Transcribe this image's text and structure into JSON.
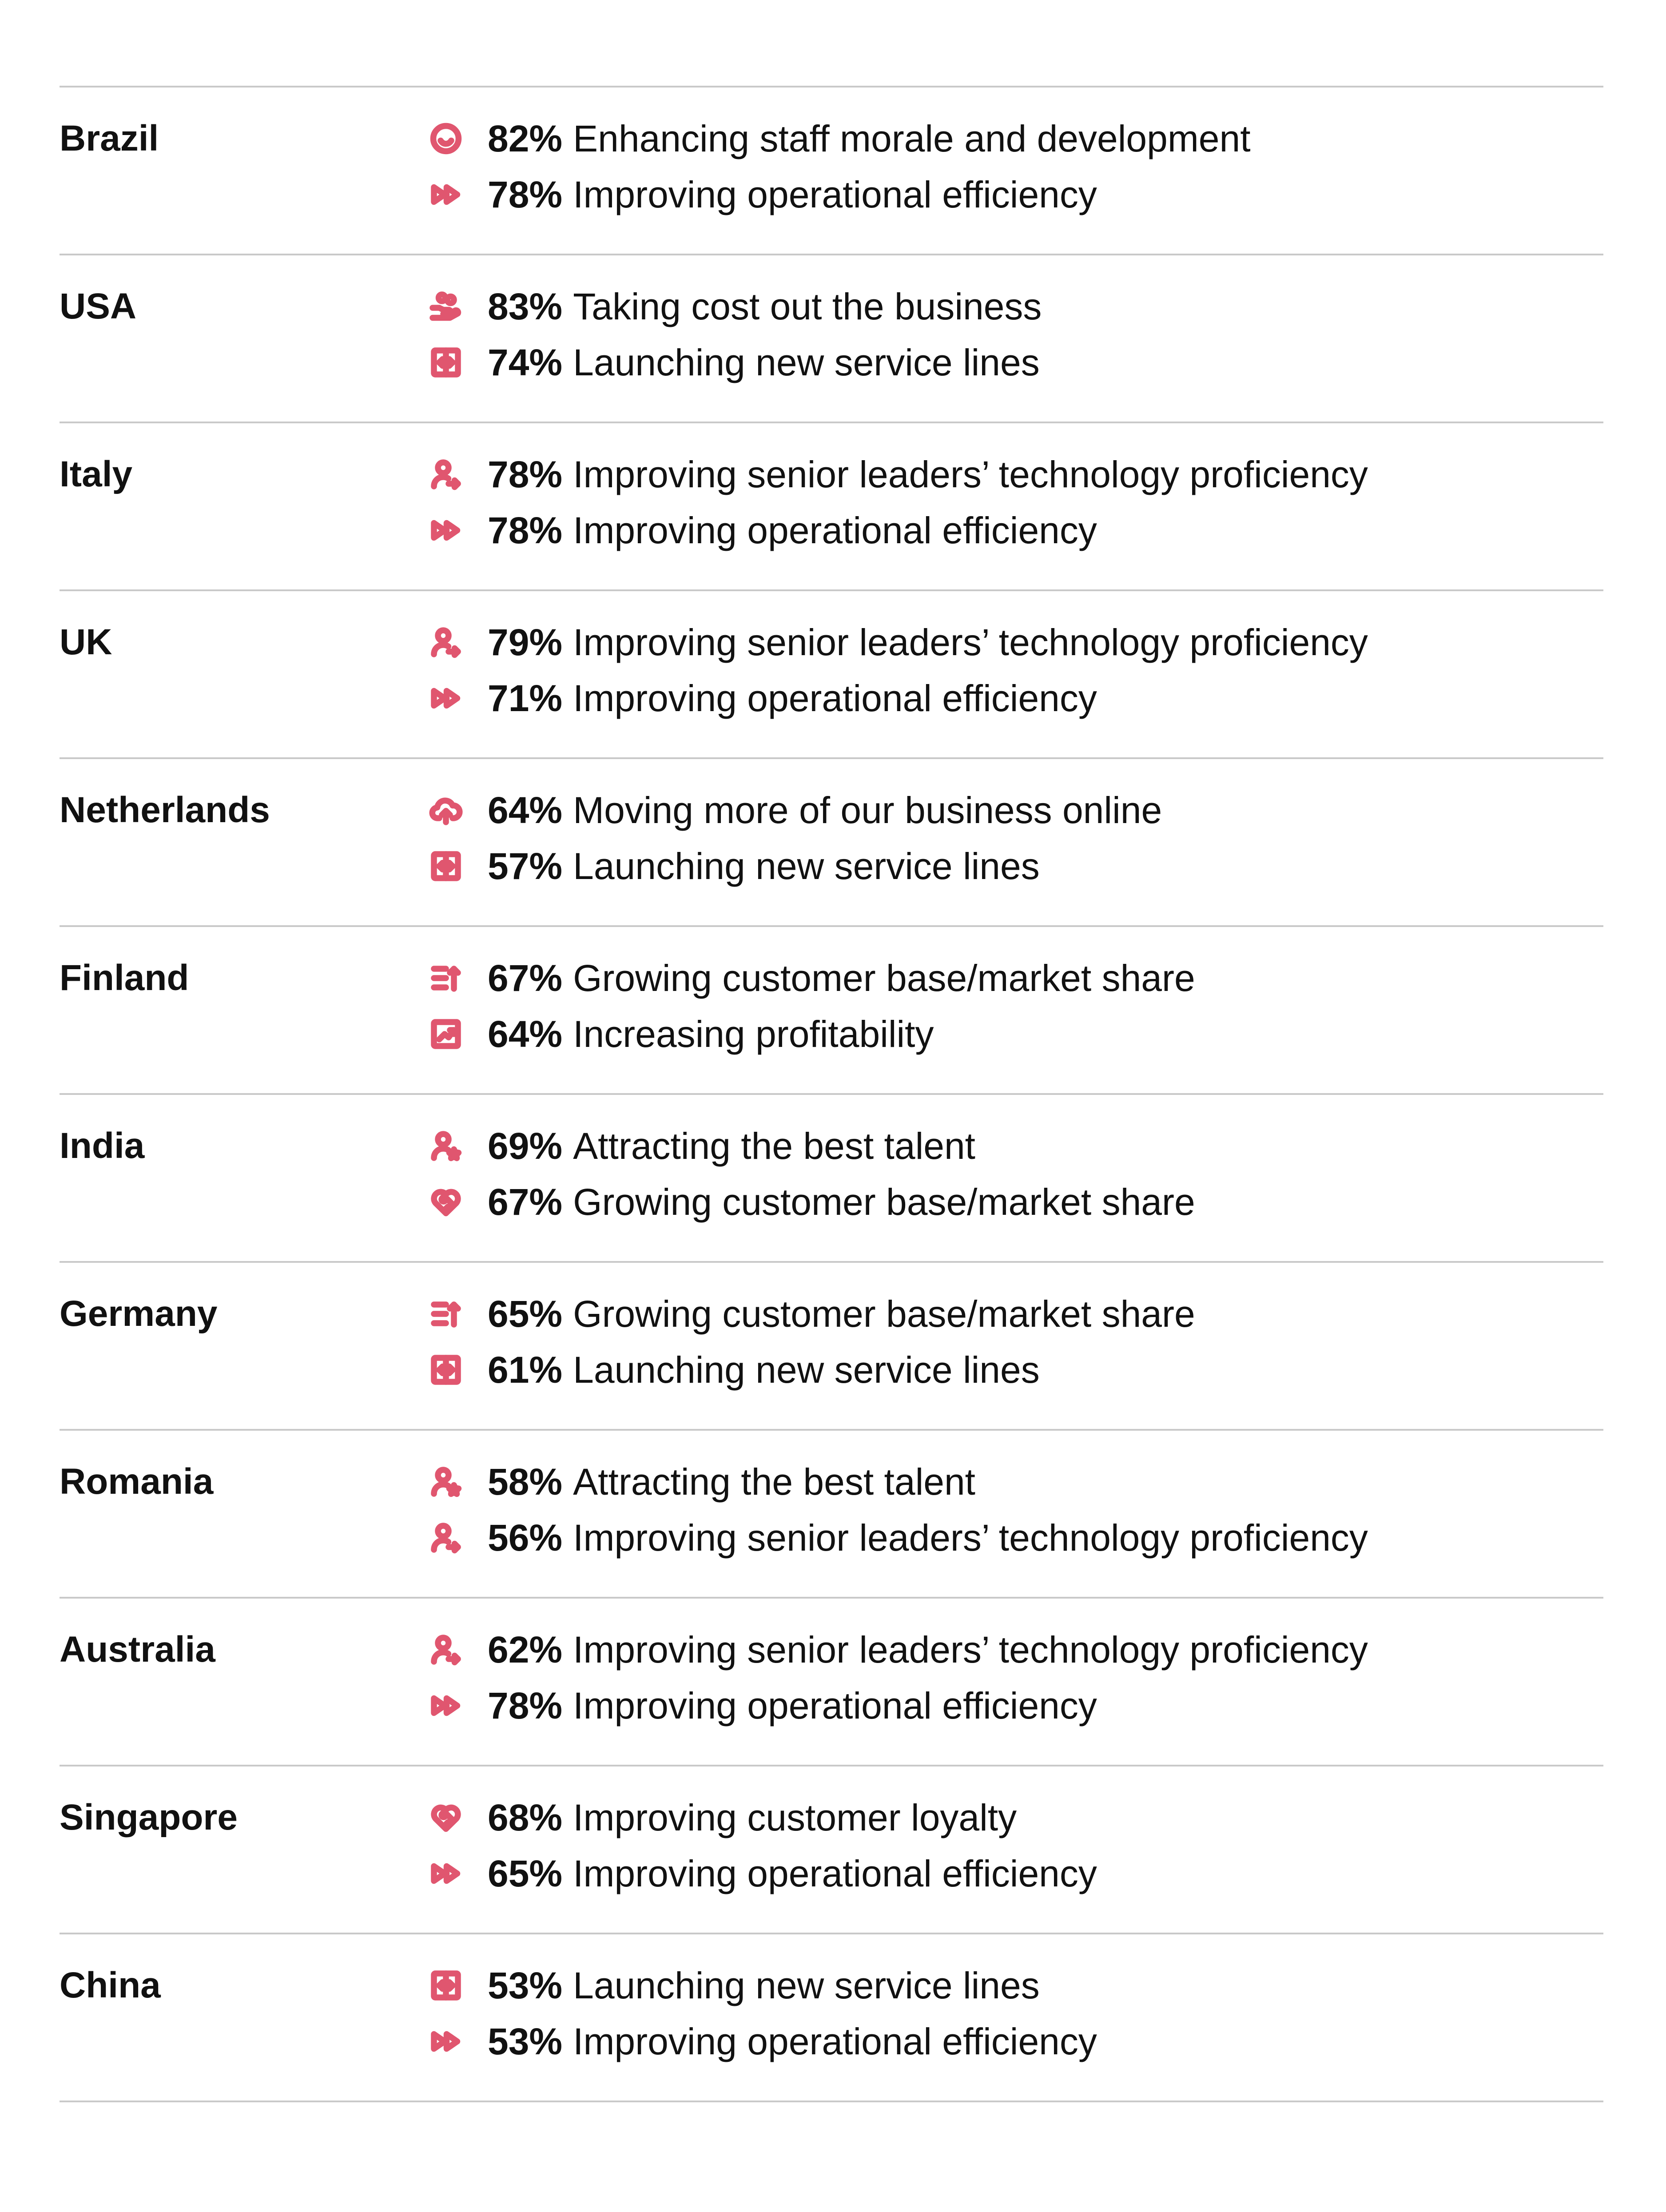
{
  "accent_color": "#e0566f",
  "rows": [
    {
      "country": "Brazil",
      "items": [
        {
          "icon": "smile-icon",
          "pct": "82%",
          "label": "Enhancing staff morale and development"
        },
        {
          "icon": "fast-forward-icon",
          "pct": "78%",
          "label": "Improving operational efficiency"
        }
      ]
    },
    {
      "country": "USA",
      "items": [
        {
          "icon": "coins-hand-icon",
          "pct": "83%",
          "label": "Taking cost out the business"
        },
        {
          "icon": "service-lines-icon",
          "pct": "74%",
          "label": "Launching new service lines"
        }
      ]
    },
    {
      "country": "Italy",
      "items": [
        {
          "icon": "user-arrow-icon",
          "pct": "78%",
          "label": "Improving senior leaders’ technology proficiency"
        },
        {
          "icon": "fast-forward-icon",
          "pct": "78%",
          "label": "Improving operational efficiency"
        }
      ]
    },
    {
      "country": "UK",
      "items": [
        {
          "icon": "user-arrow-icon",
          "pct": "79%",
          "label": "Improving senior leaders’ technology proficiency"
        },
        {
          "icon": "fast-forward-icon",
          "pct": "71%",
          "label": "Improving operational efficiency"
        }
      ]
    },
    {
      "country": "Netherlands",
      "items": [
        {
          "icon": "cloud-upload-icon",
          "pct": "64%",
          "label": "Moving more of our business online"
        },
        {
          "icon": "service-lines-icon",
          "pct": "57%",
          "label": "Launching new service lines"
        }
      ]
    },
    {
      "country": "Finland",
      "items": [
        {
          "icon": "list-growth-icon",
          "pct": "67%",
          "label": "Growing customer base/market share"
        },
        {
          "icon": "chart-up-icon",
          "pct": "64%",
          "label": "Increasing profitability"
        }
      ]
    },
    {
      "country": "India",
      "items": [
        {
          "icon": "user-star-icon",
          "pct": "69%",
          "label": "Attracting the best talent"
        },
        {
          "icon": "heart-handshake-icon",
          "pct": "67%",
          "label": "Growing customer base/market share"
        }
      ]
    },
    {
      "country": "Germany",
      "items": [
        {
          "icon": "list-growth-icon",
          "pct": "65%",
          "label": "Growing customer base/market share"
        },
        {
          "icon": "service-lines-icon",
          "pct": "61%",
          "label": "Launching new service lines"
        }
      ]
    },
    {
      "country": "Romania",
      "items": [
        {
          "icon": "user-star-icon",
          "pct": "58%",
          "label": "Attracting the best talent"
        },
        {
          "icon": "user-arrow-icon",
          "pct": "56%",
          "label": "Improving senior leaders’ technology proficiency"
        }
      ]
    },
    {
      "country": "Australia",
      "items": [
        {
          "icon": "user-arrow-icon",
          "pct": "62%",
          "label": "Improving senior leaders’ technology proficiency"
        },
        {
          "icon": "fast-forward-icon",
          "pct": "78%",
          "label": "Improving operational efficiency"
        }
      ]
    },
    {
      "country": "Singapore",
      "items": [
        {
          "icon": "heart-handshake-icon",
          "pct": "68%",
          "label": "Improving customer loyalty"
        },
        {
          "icon": "fast-forward-icon",
          "pct": "65%",
          "label": "Improving operational efficiency"
        }
      ]
    },
    {
      "country": "China",
      "items": [
        {
          "icon": "service-lines-icon",
          "pct": "53%",
          "label": "Launching new service lines"
        },
        {
          "icon": "fast-forward-icon",
          "pct": "53%",
          "label": "Improving operational efficiency"
        }
      ]
    }
  ]
}
